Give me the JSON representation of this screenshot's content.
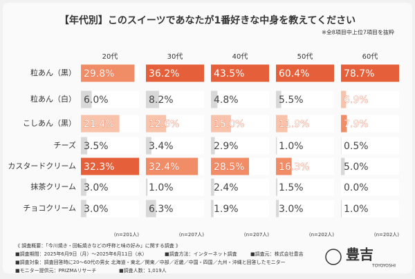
{
  "chart_data": {
    "type": "bar",
    "title": "【年代別】このスイーツであなたが1番好きな中身を教えてください",
    "note": "※全8項目中上位7項目を抜粋",
    "categories": [
      "粒あん（黒）",
      "粒あん（白）",
      "こしあん（黒）",
      "チーズ",
      "カスタードクリーム",
      "抹茶クリーム",
      "チョコクリーム"
    ],
    "rank_colors": [
      "#e5603a",
      "#f08c66",
      "#f9c3ab"
    ],
    "other_color": "#d8d8d8",
    "series": [
      {
        "name": "20代",
        "sample": "(n=201人)",
        "values": [
          29.8,
          6.0,
          21.4,
          3.5,
          32.3,
          3.0,
          3.0
        ],
        "value_labels": [
          "29.8%",
          "6.0%",
          "21.4%",
          "3.5%",
          "32.3%",
          "3.0%",
          "3.0%"
        ]
      },
      {
        "name": "30代",
        "sample": "(n=207人)",
        "values": [
          36.2,
          8.2,
          12.6,
          3.4,
          32.4,
          1.0,
          6.3
        ],
        "value_labels": [
          "36.2%",
          "8.2%",
          "12.6%",
          "3.4%",
          "32.4%",
          "1.0%",
          "6.3%"
        ]
      },
      {
        "name": "40代",
        "sample": "(n=207人)",
        "values": [
          43.5,
          4.8,
          15.0,
          2.9,
          28.5,
          2.4,
          1.9
        ],
        "value_labels": [
          "43.5%",
          "4.8%",
          "15.0%",
          "2.9%",
          "28.5%",
          "2.4%",
          "1.9%"
        ]
      },
      {
        "name": "50代",
        "sample": "(n=202人)",
        "values": [
          60.4,
          5.5,
          11.9,
          1.0,
          16.3,
          1.5,
          3.0
        ],
        "value_labels": [
          "60.4%",
          "5.5%",
          "11.9%",
          "1.0%",
          "16.3%",
          "1.5%",
          "3.0%"
        ]
      },
      {
        "name": "60代",
        "sample": "(n=202人)",
        "values": [
          78.7,
          6.9,
          7.9,
          0.5,
          5.0,
          0.0,
          1.0
        ],
        "value_labels": [
          "78.7%",
          "6.9%",
          "7.9%",
          "0.5%",
          "5.0%",
          "0.0%",
          "1.0%"
        ]
      }
    ]
  },
  "footer": {
    "heading": "《 調査概要：「今川焼き・回転焼きなどの呼称と味の好み」に関する調査 》",
    "period": "■調査期間：2025年6月9日（月）～2025年6月11日（水）",
    "method": "■調査方法：インターネット調査",
    "source": "■調査元：株式会社豊吉",
    "target": "■調査対象：調査回答時に20～60代の男女 北海道・東北／関東／中部／近畿／中国・四国／九州・沖縄と回答したモニター",
    "provider": "■モニター提供元：PRIZMAリサーチ",
    "count": "■調査人数：1,019人"
  },
  "logo": {
    "name": "豊吉",
    "roman": "TOYOYOSHI"
  }
}
